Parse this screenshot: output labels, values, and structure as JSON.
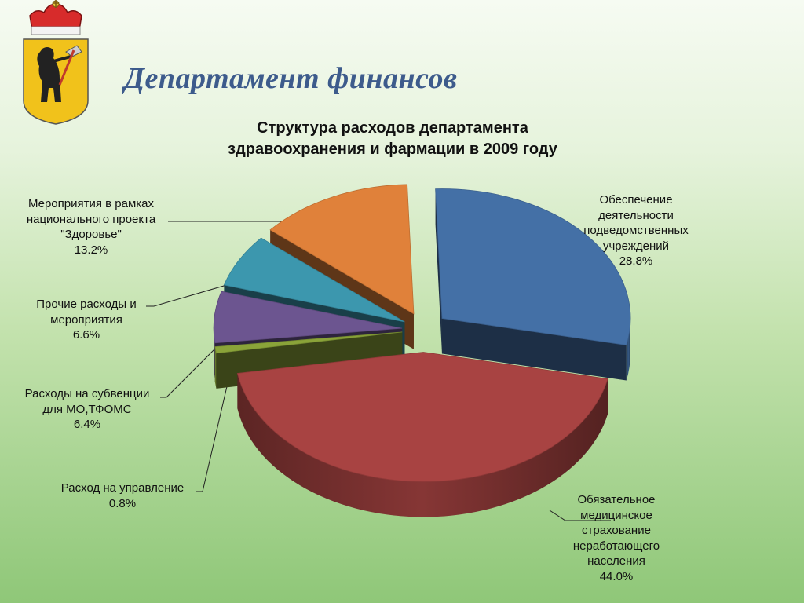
{
  "header": {
    "department_title": "Департамент финансов"
  },
  "chart_data": {
    "type": "pie",
    "title_lines": [
      "Структура расходов департамента",
      "здравоохранения и фармации в 2009 году"
    ],
    "unit": "%",
    "legend": "none",
    "slices": [
      {
        "label_lines": [
          "Обеспечение",
          "деятельности",
          "подведомственных",
          "учреждений"
        ],
        "value": 28.8,
        "value_text": "28.8%",
        "color": "#4470a6"
      },
      {
        "label_lines": [
          "Обязательное",
          "медицинское",
          "страхование",
          "неработающего",
          "населения"
        ],
        "value": 44.0,
        "value_text": "44.0%",
        "color": "#a84342"
      },
      {
        "label_lines": [
          "Расход на управление"
        ],
        "value": 0.8,
        "value_text": "0.8%",
        "color": "#8aa339"
      },
      {
        "label_lines": [
          "Расходы на субвенции",
          "для МО,ТФОМС"
        ],
        "value": 6.4,
        "value_text": "6.4%",
        "color": "#6c5590"
      },
      {
        "label_lines": [
          "Прочие расходы и",
          "мероприятия"
        ],
        "value": 6.6,
        "value_text": "6.6%",
        "color": "#3c97ae"
      },
      {
        "label_lines": [
          "Мероприятия в рамках",
          "национального проекта",
          "\"Здоровье\""
        ],
        "value": 13.2,
        "value_text": "13.2%",
        "color": "#e0813a"
      }
    ]
  }
}
